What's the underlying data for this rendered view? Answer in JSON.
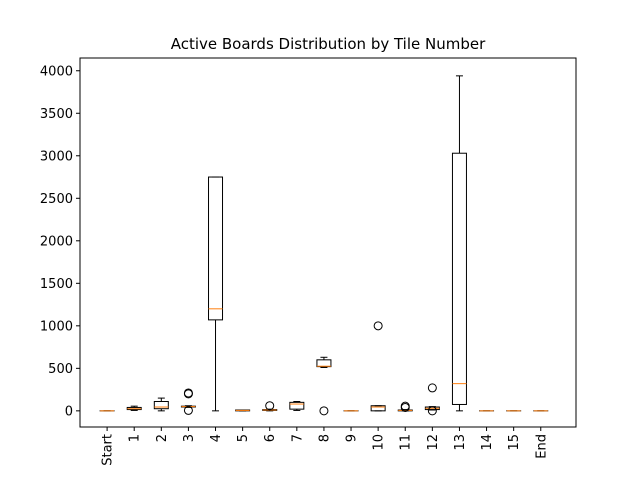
{
  "chart_data": {
    "type": "boxplot",
    "title": "Active Boards Distribution by Tile Number",
    "xlabel": "",
    "ylabel": "",
    "ylim": [
      -190,
      4150
    ],
    "yticks": [
      0,
      500,
      1000,
      1500,
      2000,
      2500,
      3000,
      3500,
      4000
    ],
    "grid": false,
    "categories": [
      "Start",
      "1",
      "2",
      "3",
      "4",
      "5",
      "6",
      "7",
      "8",
      "9",
      "10",
      "11",
      "12",
      "13",
      "14",
      "15",
      "End"
    ],
    "boxes": [
      {
        "q1": 0,
        "median": 0,
        "q3": 0,
        "whisker_low": 0,
        "whisker_high": 0,
        "outliers": []
      },
      {
        "q1": 15,
        "median": 25,
        "q3": 40,
        "whisker_low": 5,
        "whisker_high": 55,
        "outliers": []
      },
      {
        "q1": 25,
        "median": 45,
        "q3": 110,
        "whisker_low": 0,
        "whisker_high": 150,
        "outliers": []
      },
      {
        "q1": 45,
        "median": 50,
        "q3": 55,
        "whisker_low": 40,
        "whisker_high": 60,
        "outliers": [
          210,
          200,
          5
        ]
      },
      {
        "q1": 1070,
        "median": 1200,
        "q3": 2750,
        "whisker_low": 0,
        "whisker_high": 2750,
        "outliers": []
      },
      {
        "q1": 0,
        "median": 5,
        "q3": 10,
        "whisker_low": 0,
        "whisker_high": 10,
        "outliers": []
      },
      {
        "q1": 5,
        "median": 10,
        "q3": 15,
        "whisker_low": 0,
        "whisker_high": 20,
        "outliers": [
          60
        ]
      },
      {
        "q1": 20,
        "median": 80,
        "q3": 100,
        "whisker_low": 5,
        "whisker_high": 110,
        "outliers": []
      },
      {
        "q1": 520,
        "median": 525,
        "q3": 600,
        "whisker_low": 510,
        "whisker_high": 630,
        "outliers": [
          0
        ]
      },
      {
        "q1": 0,
        "median": 0,
        "q3": 0,
        "whisker_low": 0,
        "whisker_high": 0,
        "outliers": []
      },
      {
        "q1": 0,
        "median": 45,
        "q3": 60,
        "whisker_low": 0,
        "whisker_high": 60,
        "outliers": [
          1000
        ]
      },
      {
        "q1": 0,
        "median": 5,
        "q3": 10,
        "whisker_low": 0,
        "whisker_high": 15,
        "outliers": [
          55,
          40
        ]
      },
      {
        "q1": 15,
        "median": 30,
        "q3": 45,
        "whisker_low": 10,
        "whisker_high": 50,
        "outliers": [
          270,
          0
        ]
      },
      {
        "q1": 75,
        "median": 320,
        "q3": 3030,
        "whisker_low": 0,
        "whisker_high": 3940,
        "outliers": []
      },
      {
        "q1": 0,
        "median": 0,
        "q3": 0,
        "whisker_low": 0,
        "whisker_high": 0,
        "outliers": []
      },
      {
        "q1": 0,
        "median": 0,
        "q3": 0,
        "whisker_low": 0,
        "whisker_high": 0,
        "outliers": []
      },
      {
        "q1": 0,
        "median": 0,
        "q3": 0,
        "whisker_low": 0,
        "whisker_high": 0,
        "outliers": []
      }
    ],
    "colors": {
      "box": "#000000",
      "median": "#ff7f0e",
      "outlier": "#000000"
    }
  }
}
